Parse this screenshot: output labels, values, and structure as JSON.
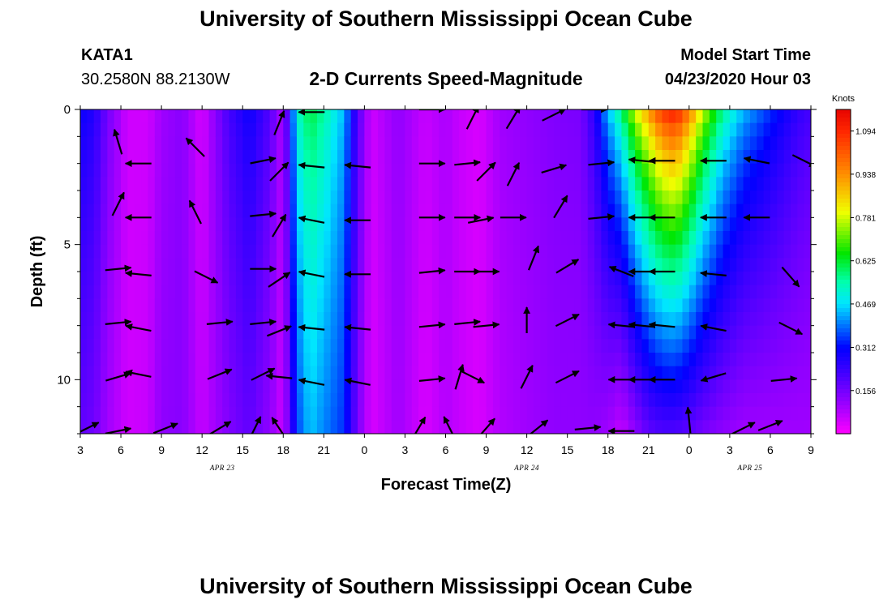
{
  "header": {
    "title": "University of Southern Mississippi Ocean Cube",
    "station_id": "KATA1",
    "coordinates": "30.2580N 88.2130W",
    "chart_title": "2-D Currents Speed-Magnitude",
    "model_start_label": "Model Start Time",
    "model_start_value": "04/23/2020 Hour 03"
  },
  "footer": {
    "title": "University of Southern Mississippi Ocean Cube"
  },
  "chart_data": {
    "type": "heatmap",
    "title": "2-D Currents Speed-Magnitude",
    "xlabel": "Forecast Time(Z)",
    "ylabel": "Depth (ft)",
    "x_hours_range": [
      3,
      57
    ],
    "ylim": [
      0,
      12
    ],
    "x_ticks": [
      {
        "h": 3,
        "label": "3"
      },
      {
        "h": 6,
        "label": "6"
      },
      {
        "h": 9,
        "label": "9"
      },
      {
        "h": 12,
        "label": "12"
      },
      {
        "h": 15,
        "label": "15"
      },
      {
        "h": 18,
        "label": "18"
      },
      {
        "h": 21,
        "label": "21"
      },
      {
        "h": 24,
        "label": "0"
      },
      {
        "h": 27,
        "label": "3"
      },
      {
        "h": 30,
        "label": "6"
      },
      {
        "h": 33,
        "label": "9"
      },
      {
        "h": 36,
        "label": "12"
      },
      {
        "h": 39,
        "label": "15"
      },
      {
        "h": 42,
        "label": "18"
      },
      {
        "h": 45,
        "label": "21"
      },
      {
        "h": 48,
        "label": "0"
      },
      {
        "h": 51,
        "label": "3"
      },
      {
        "h": 54,
        "label": "6"
      },
      {
        "h": 57,
        "label": "9"
      }
    ],
    "date_labels": [
      {
        "h": 13.5,
        "label": "APR 23"
      },
      {
        "h": 36,
        "label": "APR 24"
      },
      {
        "h": 52.5,
        "label": "APR 25"
      }
    ],
    "y_ticks": [
      0,
      5,
      10
    ],
    "colorbar": {
      "title": "Knots",
      "min": 0,
      "max": 1.172,
      "ticks": [
        1.094,
        0.938,
        0.781,
        0.625,
        0.469,
        0.312,
        0.156
      ],
      "tick_labels": [
        "1.094",
        "0.938",
        "0.781",
        "0.625",
        "0.469",
        "0.312",
        "0.156"
      ]
    },
    "speed_profile_by_hour": [
      {
        "h": 3,
        "surface": 0.3,
        "bottom": 0.18
      },
      {
        "h": 4,
        "surface": 0.27,
        "bottom": 0.16
      },
      {
        "h": 5,
        "surface": 0.16,
        "bottom": 0.1
      },
      {
        "h": 6.5,
        "surface": 0.05,
        "bottom": 0.05
      },
      {
        "h": 8,
        "surface": 0.05,
        "bottom": 0.06
      },
      {
        "h": 9,
        "surface": 0.1,
        "bottom": 0.12
      },
      {
        "h": 10.5,
        "surface": 0.13,
        "bottom": 0.13
      },
      {
        "h": 12,
        "surface": 0.04,
        "bottom": 0.06
      },
      {
        "h": 14,
        "surface": 0.22,
        "bottom": 0.14
      },
      {
        "h": 15.5,
        "surface": 0.3,
        "bottom": 0.18
      },
      {
        "h": 17,
        "surface": 0.2,
        "bottom": 0.12
      },
      {
        "h": 18,
        "surface": 0.08,
        "bottom": 0.05
      },
      {
        "h": 19,
        "surface": 0.52,
        "bottom": 0.35
      },
      {
        "h": 20,
        "surface": 0.62,
        "bottom": 0.45
      },
      {
        "h": 21,
        "surface": 0.56,
        "bottom": 0.4
      },
      {
        "h": 22.5,
        "surface": 0.44,
        "bottom": 0.34
      },
      {
        "h": 23.5,
        "surface": 0.2,
        "bottom": 0.15
      },
      {
        "h": 24.5,
        "surface": 0.05,
        "bottom": 0.04
      },
      {
        "h": 26.5,
        "surface": 0.12,
        "bottom": 0.1
      },
      {
        "h": 28.5,
        "surface": 0.06,
        "bottom": 0.04
      },
      {
        "h": 30,
        "surface": 0.09,
        "bottom": 0.08
      },
      {
        "h": 31,
        "surface": 0.06,
        "bottom": 0.06
      },
      {
        "h": 32.5,
        "surface": 0.04,
        "bottom": 0.04
      },
      {
        "h": 34,
        "surface": 0.1,
        "bottom": 0.08
      },
      {
        "h": 36,
        "surface": 0.12,
        "bottom": 0.1
      },
      {
        "h": 38,
        "surface": 0.14,
        "bottom": 0.12
      },
      {
        "h": 40,
        "surface": 0.15,
        "bottom": 0.12
      },
      {
        "h": 41,
        "surface": 0.26,
        "bottom": 0.12
      },
      {
        "h": 42,
        "surface": 0.45,
        "bottom": 0.1
      },
      {
        "h": 43,
        "surface": 0.6,
        "bottom": 0.06
      },
      {
        "h": 44,
        "surface": 0.8,
        "bottom": 0.12
      },
      {
        "h": 45,
        "surface": 0.95,
        "bottom": 0.18
      },
      {
        "h": 46,
        "surface": 1.1,
        "bottom": 0.2
      },
      {
        "h": 47,
        "surface": 1.15,
        "bottom": 0.2
      },
      {
        "h": 48,
        "surface": 1.0,
        "bottom": 0.18
      },
      {
        "h": 49,
        "surface": 0.8,
        "bottom": 0.15
      },
      {
        "h": 50.5,
        "surface": 0.58,
        "bottom": 0.12
      },
      {
        "h": 52,
        "surface": 0.45,
        "bottom": 0.1
      },
      {
        "h": 54,
        "surface": 0.35,
        "bottom": 0.1
      },
      {
        "h": 56,
        "surface": 0.25,
        "bottom": 0.1
      },
      {
        "h": 57,
        "surface": 0.22,
        "bottom": 0.1
      }
    ],
    "vectors": [
      {
        "h": 3.5,
        "d": 11.8,
        "u": 1.0,
        "v": 0.5
      },
      {
        "h": 5.8,
        "d": 1.2,
        "u": -0.3,
        "v": 1.0
      },
      {
        "h": 5.8,
        "d": 3.5,
        "u": 0.5,
        "v": 1.0
      },
      {
        "h": 5.8,
        "d": 5.9,
        "u": 1.0,
        "v": 0.1
      },
      {
        "h": 5.8,
        "d": 7.9,
        "u": 1.0,
        "v": 0.1
      },
      {
        "h": 5.8,
        "d": 9.9,
        "u": 1.0,
        "v": 0.3
      },
      {
        "h": 5.8,
        "d": 11.9,
        "u": 1.0,
        "v": 0.2
      },
      {
        "h": 7.3,
        "d": 2.0,
        "u": -1.0,
        "v": 0.0
      },
      {
        "h": 7.3,
        "d": 4.0,
        "u": -1.0,
        "v": 0.0
      },
      {
        "h": 7.3,
        "d": 6.1,
        "u": -1.0,
        "v": 0.1
      },
      {
        "h": 7.3,
        "d": 8.1,
        "u": -1.0,
        "v": 0.2
      },
      {
        "h": 7.3,
        "d": 9.8,
        "u": -1.0,
        "v": 0.2
      },
      {
        "h": 9.3,
        "d": 11.8,
        "u": 1.0,
        "v": 0.4
      },
      {
        "h": 11.5,
        "d": 1.4,
        "u": -0.8,
        "v": 0.8
      },
      {
        "h": 11.5,
        "d": 3.8,
        "u": -0.5,
        "v": 1.0
      },
      {
        "h": 12.3,
        "d": 6.2,
        "u": 1.0,
        "v": -0.5
      },
      {
        "h": 13.3,
        "d": 7.9,
        "u": 1.0,
        "v": 0.1
      },
      {
        "h": 13.3,
        "d": 9.8,
        "u": 1.0,
        "v": 0.4
      },
      {
        "h": 13.3,
        "d": 11.8,
        "u": 1.0,
        "v": 0.6
      },
      {
        "h": 16.5,
        "d": 1.9,
        "u": 1.0,
        "v": 0.2
      },
      {
        "h": 16.5,
        "d": 3.9,
        "u": 1.0,
        "v": 0.1
      },
      {
        "h": 16.5,
        "d": 5.9,
        "u": 1.0,
        "v": 0.0
      },
      {
        "h": 16.5,
        "d": 7.9,
        "u": 1.0,
        "v": 0.1
      },
      {
        "h": 16.5,
        "d": 9.8,
        "u": 1.0,
        "v": 0.5
      },
      {
        "h": 15.9,
        "d": 11.8,
        "u": 0.5,
        "v": 1.0
      },
      {
        "h": 17.7,
        "d": 0.5,
        "u": 0.4,
        "v": 1.0
      },
      {
        "h": 17.7,
        "d": 2.3,
        "u": 0.8,
        "v": 0.8
      },
      {
        "h": 17.7,
        "d": 4.3,
        "u": 0.6,
        "v": 1.0
      },
      {
        "h": 17.7,
        "d": 6.3,
        "u": 0.9,
        "v": 0.6
      },
      {
        "h": 17.7,
        "d": 8.2,
        "u": 1.0,
        "v": 0.4
      },
      {
        "h": 17.7,
        "d": 9.9,
        "u": -1.0,
        "v": 0.1
      },
      {
        "h": 17.7,
        "d": 11.8,
        "u": -0.6,
        "v": 0.9
      },
      {
        "h": 20.1,
        "d": 0.1,
        "u": -1.0,
        "v": 0.0
      },
      {
        "h": 20.1,
        "d": 2.1,
        "u": -1.0,
        "v": 0.1
      },
      {
        "h": 20.1,
        "d": 4.1,
        "u": -1.0,
        "v": 0.2
      },
      {
        "h": 20.1,
        "d": 6.1,
        "u": -1.0,
        "v": 0.2
      },
      {
        "h": 20.1,
        "d": 8.1,
        "u": -1.0,
        "v": 0.1
      },
      {
        "h": 20.1,
        "d": 10.1,
        "u": -1.0,
        "v": 0.2
      },
      {
        "h": 23.5,
        "d": 2.1,
        "u": -1.0,
        "v": 0.1
      },
      {
        "h": 23.5,
        "d": 4.1,
        "u": -1.0,
        "v": 0.0
      },
      {
        "h": 23.5,
        "d": 6.1,
        "u": -1.0,
        "v": 0.0
      },
      {
        "h": 23.5,
        "d": 8.1,
        "u": -1.0,
        "v": 0.1
      },
      {
        "h": 23.5,
        "d": 10.1,
        "u": -1.0,
        "v": 0.2
      },
      {
        "h": 28.0,
        "d": 11.8,
        "u": 0.6,
        "v": 1.0
      },
      {
        "h": 29.0,
        "d": 0.0,
        "u": 1.0,
        "v": 0.0
      },
      {
        "h": 29.0,
        "d": 2.0,
        "u": 1.0,
        "v": 0.0
      },
      {
        "h": 29.0,
        "d": 4.0,
        "u": 1.0,
        "v": 0.0
      },
      {
        "h": 29.0,
        "d": 6.0,
        "u": 1.0,
        "v": 0.1
      },
      {
        "h": 29.0,
        "d": 8.0,
        "u": 1.0,
        "v": 0.1
      },
      {
        "h": 29.0,
        "d": 10.0,
        "u": 1.0,
        "v": 0.1
      },
      {
        "h": 30.3,
        "d": 11.8,
        "u": -0.5,
        "v": 1.0
      },
      {
        "h": 31.0,
        "d": 9.9,
        "u": 0.3,
        "v": 1.0
      },
      {
        "h": 31.6,
        "d": 2.0,
        "u": 1.0,
        "v": 0.1
      },
      {
        "h": 31.6,
        "d": 4.0,
        "u": 1.0,
        "v": 0.0
      },
      {
        "h": 31.6,
        "d": 6.0,
        "u": 1.0,
        "v": 0.0
      },
      {
        "h": 31.6,
        "d": 7.9,
        "u": 1.0,
        "v": 0.1
      },
      {
        "h": 32.0,
        "d": 0.3,
        "u": 0.5,
        "v": 1.0
      },
      {
        "h": 33.0,
        "d": 2.3,
        "u": 0.8,
        "v": 0.8
      },
      {
        "h": 32.6,
        "d": 4.1,
        "u": 1.0,
        "v": 0.2
      },
      {
        "h": 33.0,
        "d": 6.0,
        "u": 1.0,
        "v": 0.0
      },
      {
        "h": 33.0,
        "d": 8.0,
        "u": 1.0,
        "v": 0.1
      },
      {
        "h": 32.0,
        "d": 9.9,
        "u": 1.0,
        "v": -0.5
      },
      {
        "h": 33.0,
        "d": 11.8,
        "u": 0.7,
        "v": 0.8
      },
      {
        "h": 35.0,
        "d": 0.3,
        "u": 0.6,
        "v": 1.0
      },
      {
        "h": 35.0,
        "d": 2.4,
        "u": 0.5,
        "v": 1.0
      },
      {
        "h": 35.0,
        "d": 4.0,
        "u": 1.0,
        "v": 0.0
      },
      {
        "h": 36.5,
        "d": 5.5,
        "u": 0.4,
        "v": 1.0
      },
      {
        "h": 36.0,
        "d": 7.8,
        "u": 0.0,
        "v": 1.0
      },
      {
        "h": 36.0,
        "d": 9.9,
        "u": 0.5,
        "v": 1.0
      },
      {
        "h": 36.8,
        "d": 11.8,
        "u": 1.0,
        "v": 0.8
      },
      {
        "h": 38.0,
        "d": 0.2,
        "u": 1.0,
        "v": 0.5
      },
      {
        "h": 38.0,
        "d": 2.2,
        "u": 1.0,
        "v": 0.3
      },
      {
        "h": 38.5,
        "d": 3.6,
        "u": 0.6,
        "v": 1.0
      },
      {
        "h": 39.0,
        "d": 5.8,
        "u": 1.0,
        "v": 0.6
      },
      {
        "h": 39.0,
        "d": 7.8,
        "u": 1.0,
        "v": 0.5
      },
      {
        "h": 39.0,
        "d": 9.9,
        "u": 1.0,
        "v": 0.5
      },
      {
        "h": 40.5,
        "d": 11.8,
        "u": 1.0,
        "v": 0.1
      },
      {
        "h": 41.0,
        "d": 0.0,
        "u": 1.0,
        "v": 0.0
      },
      {
        "h": 41.5,
        "d": 2.0,
        "u": 1.0,
        "v": 0.1
      },
      {
        "h": 41.5,
        "d": 4.0,
        "u": 1.0,
        "v": 0.1
      },
      {
        "h": 43.0,
        "d": 6.0,
        "u": -1.0,
        "v": 0.4
      },
      {
        "h": 43.0,
        "d": 8.0,
        "u": -1.0,
        "v": 0.1
      },
      {
        "h": 43.0,
        "d": 10.0,
        "u": -1.0,
        "v": 0.0
      },
      {
        "h": 43.0,
        "d": 11.9,
        "u": -1.0,
        "v": 0.0
      },
      {
        "h": 44.5,
        "d": 1.9,
        "u": -1.0,
        "v": 0.1
      },
      {
        "h": 44.5,
        "d": 4.0,
        "u": -1.0,
        "v": 0.0
      },
      {
        "h": 44.5,
        "d": 6.0,
        "u": -1.0,
        "v": 0.0
      },
      {
        "h": 44.5,
        "d": 8.0,
        "u": -1.0,
        "v": 0.1
      },
      {
        "h": 44.5,
        "d": 10.0,
        "u": -1.0,
        "v": 0.0
      },
      {
        "h": 46.0,
        "d": 1.9,
        "u": -1.0,
        "v": 0.0
      },
      {
        "h": 46.0,
        "d": 4.0,
        "u": -1.0,
        "v": 0.0
      },
      {
        "h": 46.0,
        "d": 6.0,
        "u": -1.0,
        "v": 0.0
      },
      {
        "h": 46.0,
        "d": 8.0,
        "u": -1.0,
        "v": 0.1
      },
      {
        "h": 46.0,
        "d": 10.0,
        "u": -1.0,
        "v": 0.0
      },
      {
        "h": 48.0,
        "d": 11.5,
        "u": -0.1,
        "v": 1.0
      },
      {
        "h": 49.8,
        "d": 1.9,
        "u": -1.0,
        "v": 0.0
      },
      {
        "h": 49.8,
        "d": 4.0,
        "u": -1.0,
        "v": 0.0
      },
      {
        "h": 49.8,
        "d": 6.1,
        "u": -1.0,
        "v": 0.1
      },
      {
        "h": 49.8,
        "d": 8.1,
        "u": -1.0,
        "v": 0.2
      },
      {
        "h": 49.8,
        "d": 9.9,
        "u": -1.0,
        "v": -0.3
      },
      {
        "h": 52.0,
        "d": 11.8,
        "u": 1.0,
        "v": 0.5
      },
      {
        "h": 53.0,
        "d": 1.9,
        "u": -1.0,
        "v": 0.2
      },
      {
        "h": 53.0,
        "d": 4.0,
        "u": -1.0,
        "v": 0.0
      },
      {
        "h": 54.0,
        "d": 11.7,
        "u": 1.0,
        "v": 0.4
      },
      {
        "h": 55.0,
        "d": 10.0,
        "u": 1.0,
        "v": 0.1
      },
      {
        "h": 55.5,
        "d": 8.1,
        "u": 1.0,
        "v": -0.5
      },
      {
        "h": 55.5,
        "d": 6.2,
        "u": 0.7,
        "v": -0.8
      },
      {
        "h": 56.5,
        "d": 1.9,
        "u": 1.0,
        "v": -0.5
      }
    ]
  }
}
